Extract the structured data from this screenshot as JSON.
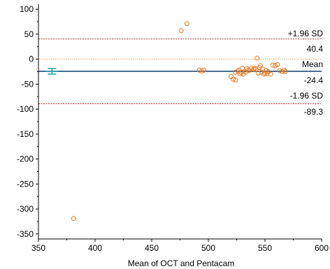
{
  "chart_data": {
    "type": "scatter",
    "chart_kind": "Bland-Altman",
    "xlabel": "Mean of OCT and Pentacam",
    "ylabel": "",
    "xlim": [
      350,
      600
    ],
    "ylim": [
      -360,
      110
    ],
    "xticks": [
      350,
      400,
      450,
      500,
      550,
      600
    ],
    "yticks": [
      100,
      50,
      0,
      -50,
      -100,
      -150,
      -200,
      -250,
      -300,
      -350
    ],
    "grid": false,
    "colors": {
      "points": "#f07820",
      "mean_line": "#1a4d80",
      "sd_lines": "#c0282d",
      "zero_line": "#f0a060",
      "ci_marker": "#1aa0a0"
    },
    "reference_lines": {
      "upper": {
        "label": "+1.96 SD",
        "value": 40.4,
        "value_label": "40.4"
      },
      "mean": {
        "label": "Mean",
        "value": -24.4,
        "value_label": "-24.4"
      },
      "lower": {
        "label": "-1.96 SD",
        "value": -89.3,
        "value_label": "-89.3"
      },
      "zero": {
        "value": 0
      }
    },
    "mean_ci_marker": {
      "x": 362,
      "y_low": -30,
      "y_high": -19
    },
    "points": [
      {
        "x": 476,
        "y": 57
      },
      {
        "x": 481,
        "y": 71
      },
      {
        "x": 381,
        "y": -319
      },
      {
        "x": 492,
        "y": -22
      },
      {
        "x": 494,
        "y": -24
      },
      {
        "x": 496,
        "y": -22
      },
      {
        "x": 520,
        "y": -35
      },
      {
        "x": 522,
        "y": -40
      },
      {
        "x": 524,
        "y": -42
      },
      {
        "x": 524,
        "y": -26
      },
      {
        "x": 526,
        "y": -24
      },
      {
        "x": 527,
        "y": -22
      },
      {
        "x": 528,
        "y": -30
      },
      {
        "x": 529,
        "y": -27
      },
      {
        "x": 530,
        "y": -18
      },
      {
        "x": 531,
        "y": -30
      },
      {
        "x": 533,
        "y": -26
      },
      {
        "x": 534,
        "y": -19
      },
      {
        "x": 535,
        "y": -22
      },
      {
        "x": 536,
        "y": -23
      },
      {
        "x": 538,
        "y": -18
      },
      {
        "x": 540,
        "y": -20
      },
      {
        "x": 541,
        "y": -18
      },
      {
        "x": 542,
        "y": -20
      },
      {
        "x": 543,
        "y": 2
      },
      {
        "x": 544,
        "y": -28
      },
      {
        "x": 545,
        "y": -17
      },
      {
        "x": 546,
        "y": -13
      },
      {
        "x": 547,
        "y": -26
      },
      {
        "x": 548,
        "y": -20
      },
      {
        "x": 549,
        "y": -30
      },
      {
        "x": 550,
        "y": -28
      },
      {
        "x": 551,
        "y": -23
      },
      {
        "x": 552,
        "y": -29
      },
      {
        "x": 553,
        "y": -25
      },
      {
        "x": 555,
        "y": -30
      },
      {
        "x": 557,
        "y": -12
      },
      {
        "x": 559,
        "y": -13
      },
      {
        "x": 561,
        "y": -11
      },
      {
        "x": 563,
        "y": -23
      },
      {
        "x": 565,
        "y": -25
      },
      {
        "x": 567,
        "y": -22
      },
      {
        "x": 568,
        "y": -25
      }
    ]
  }
}
